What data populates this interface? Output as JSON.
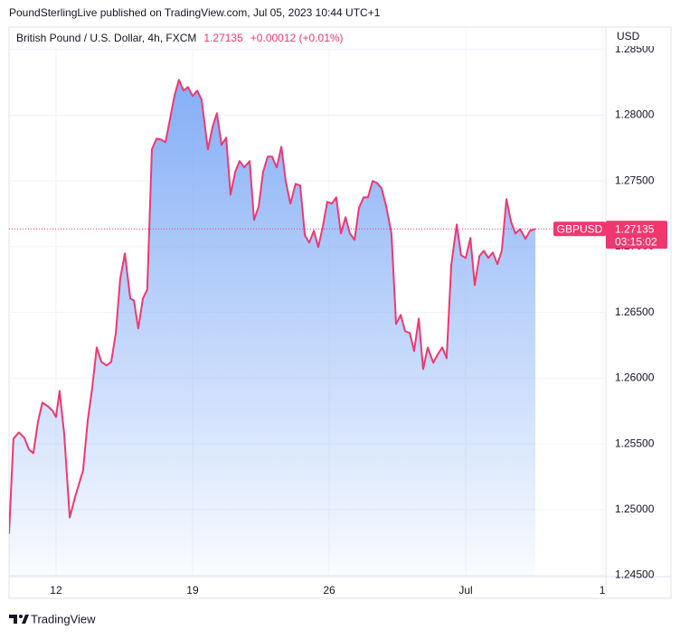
{
  "header": {
    "published": "PoundSterlingLive published on TradingView.com, Jul 05, 2023 10:44 UTC+1"
  },
  "chart_data": {
    "type": "area",
    "title": "British Pound / U.S. Dollar, 4h, FXCM",
    "change": "+0.00012 (+0.01%)",
    "currency": "USD",
    "symbol": "GBPUSD",
    "last_price": {
      "value": 1.27135,
      "label": "1.27135"
    },
    "countdown": "03:15:02",
    "line_color": "#f0386f",
    "fill_color": "#7eaaf6",
    "grid": true,
    "x": [
      -1.72,
      -1.56,
      -1.36,
      -1.16,
      -0.99,
      -0.83,
      -0.66,
      -0.5,
      -0.3,
      -0.13,
      0,
      0.13,
      0.3,
      0.5,
      0.73,
      0.99,
      1.16,
      1.32,
      1.49,
      1.66,
      1.85,
      2.02,
      2.19,
      2.35,
      2.52,
      2.72,
      2.85,
      3.01,
      3.18,
      3.34,
      3.51,
      3.68,
      3.84,
      4.01,
      4.17,
      4.34,
      4.5,
      4.67,
      4.83,
      5,
      5.17,
      5.33,
      5.56,
      5.73,
      5.89,
      6.06,
      6.23,
      6.39,
      6.56,
      6.72,
      6.89,
      7.09,
      7.25,
      7.42,
      7.58,
      7.75,
      7.91,
      8.08,
      8.25,
      8.41,
      8.58,
      8.77,
      8.94,
      9.11,
      9.27,
      9.44,
      9.6,
      9.77,
      9.93,
      10.1,
      10.26,
      10.43,
      10.6,
      10.76,
      10.93,
      11.09,
      11.26,
      11.42,
      11.59,
      11.75,
      11.92,
      12.09,
      12.28,
      12.45,
      12.62,
      12.78,
      12.95,
      13.11,
      13.28,
      13.44,
      13.61,
      13.81,
      13.97,
      14.14,
      14.3,
      14.47,
      14.67,
      14.83,
      15,
      15.17,
      15.33,
      15.5,
      15.66,
      15.83,
      15.99,
      16.16,
      16.32,
      16.49,
      16.66,
      16.82,
      16.99,
      17.19,
      17.35,
      17.55
    ],
    "values": [
      1.24816,
      1.25539,
      1.25587,
      1.25546,
      1.25456,
      1.25429,
      1.25669,
      1.25814,
      1.25786,
      1.25752,
      1.25704,
      1.25903,
      1.25573,
      1.2494,
      1.25119,
      1.25298,
      1.25676,
      1.25917,
      1.26233,
      1.26124,
      1.26096,
      1.26124,
      1.26344,
      1.26756,
      1.26949,
      1.26605,
      1.26591,
      1.26378,
      1.26605,
      1.26674,
      1.2774,
      1.27822,
      1.27815,
      1.27795,
      1.27967,
      1.28152,
      1.28269,
      1.28187,
      1.28214,
      1.28146,
      1.28187,
      1.28118,
      1.2774,
      1.27911,
      1.28015,
      1.27774,
      1.27829,
      1.27396,
      1.27568,
      1.27651,
      1.27603,
      1.27651,
      1.27203,
      1.27306,
      1.27568,
      1.27685,
      1.27685,
      1.27603,
      1.2776,
      1.27499,
      1.27327,
      1.27478,
      1.27465,
      1.27086,
      1.27031,
      1.27121,
      1.26997,
      1.27155,
      1.27341,
      1.27327,
      1.27375,
      1.271,
      1.27224,
      1.271,
      1.27052,
      1.27293,
      1.27375,
      1.27375,
      1.27499,
      1.27485,
      1.27444,
      1.27306,
      1.271,
      1.26412,
      1.26481,
      1.26357,
      1.26343,
      1.26206,
      1.26453,
      1.26068,
      1.26233,
      1.26117,
      1.26179,
      1.26233,
      1.26151,
      1.26859,
      1.27169,
      1.26935,
      1.26914,
      1.27066,
      1.26708,
      1.26928,
      1.26969,
      1.26914,
      1.26956,
      1.26867,
      1.26969,
      1.27361,
      1.27189,
      1.271,
      1.27134,
      1.27059,
      1.27121,
      1.27135
    ],
    "xlim": [
      -1.72,
      20.13
    ],
    "xticks": [
      {
        "value": 0,
        "label": "12"
      },
      {
        "value": 5,
        "label": "19"
      },
      {
        "value": 10,
        "label": "26"
      },
      {
        "value": 15,
        "label": "Jul"
      },
      {
        "value": 20,
        "label": "1"
      }
    ],
    "ylim": [
      1.2449,
      1.2867
    ],
    "yticks": [
      {
        "value": 1.245,
        "label": "1.24500"
      },
      {
        "value": 1.25,
        "label": "1.25000"
      },
      {
        "value": 1.255,
        "label": "1.25500"
      },
      {
        "value": 1.26,
        "label": "1.26000"
      },
      {
        "value": 1.265,
        "label": "1.26500"
      },
      {
        "value": 1.27,
        "label": "1.27000"
      },
      {
        "value": 1.275,
        "label": "1.27500"
      },
      {
        "value": 1.28,
        "label": "1.28000"
      },
      {
        "value": 1.285,
        "label": "1.28500"
      }
    ]
  },
  "footer": {
    "brand": "TradingView"
  }
}
